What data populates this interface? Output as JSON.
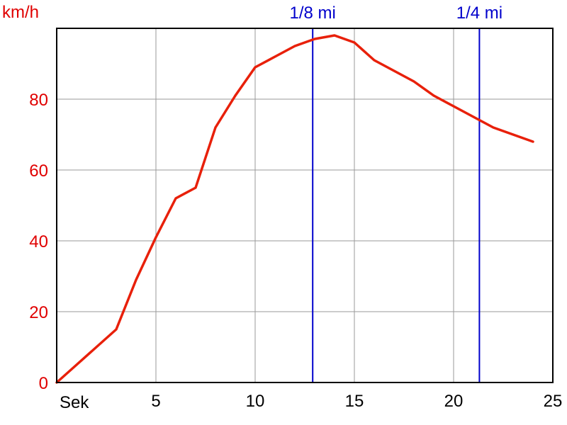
{
  "chart_data": {
    "type": "line",
    "title": "",
    "ylabel": "km/h",
    "xlabel": "Sek",
    "xlim": [
      0,
      25
    ],
    "ylim": [
      0,
      100
    ],
    "x_ticks": [
      "5",
      "10",
      "15",
      "20",
      "25"
    ],
    "x_tick_values": [
      5,
      10,
      15,
      20,
      25
    ],
    "y_ticks": [
      "0",
      "20",
      "40",
      "60",
      "80"
    ],
    "y_tick_values": [
      0,
      20,
      40,
      60,
      80
    ],
    "grid": true,
    "series": [
      {
        "color": "#e8200a",
        "x": [
          0,
          1,
          2,
          3,
          4,
          5,
          6,
          7,
          8,
          9,
          10,
          11,
          12,
          13,
          14,
          15,
          16,
          17,
          18,
          19,
          20,
          21,
          22,
          23,
          24
        ],
        "y": [
          0,
          5,
          10,
          15,
          29,
          41,
          52,
          55,
          72,
          81,
          89,
          92,
          95,
          97,
          98,
          96,
          91,
          88,
          85,
          81,
          78,
          75,
          72,
          70,
          68
        ]
      }
    ],
    "reference_lines": [
      {
        "x": 12.9,
        "label": "1/8 mi",
        "color": "#0000cc"
      },
      {
        "x": 21.3,
        "label": "1/4 mi",
        "color": "#0000cc"
      }
    ]
  }
}
